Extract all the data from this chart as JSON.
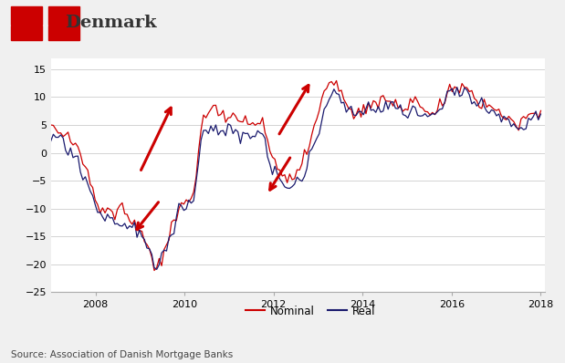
{
  "title": "Denmark",
  "source": "Source: Association of Danish Mortgage Banks",
  "ylim": [
    -25,
    17
  ],
  "yticks": [
    -25,
    -20,
    -15,
    -10,
    -5,
    0,
    5,
    10,
    15
  ],
  "xlim_start": 2007.0,
  "xlim_end": 2018.1,
  "xticks": [
    2008,
    2010,
    2012,
    2014,
    2016,
    2018
  ],
  "bg_color": "#f0f0f0",
  "bg_plot": "#ffffff",
  "nominal_color": "#cc0000",
  "real_color": "#1a1a6e",
  "arrow_color": "#cc0000",
  "nominal_key_t": [
    2007.0,
    2007.3,
    2007.6,
    2007.9,
    2008.1,
    2008.4,
    2008.6,
    2008.8,
    2009.0,
    2009.2,
    2009.35,
    2009.5,
    2009.7,
    2009.9,
    2010.0,
    2010.2,
    2010.4,
    2010.6,
    2010.8,
    2011.0,
    2011.2,
    2011.4,
    2011.6,
    2011.75,
    2011.9,
    2012.0,
    2012.15,
    2012.3,
    2012.5,
    2012.65,
    2012.8,
    2013.0,
    2013.2,
    2013.4,
    2013.6,
    2013.8,
    2014.0,
    2014.3,
    2014.6,
    2014.9,
    2015.2,
    2015.5,
    2015.8,
    2016.0,
    2016.2,
    2016.4,
    2016.6,
    2016.8,
    2017.0,
    2017.2,
    2017.5,
    2017.7,
    2018.0
  ],
  "nominal_key_v": [
    5.0,
    3.5,
    1.0,
    -5.0,
    -9.5,
    -10.5,
    -9.0,
    -12.0,
    -14.0,
    -17.0,
    -21.0,
    -19.0,
    -14.0,
    -9.5,
    -9.0,
    -8.5,
    6.5,
    8.0,
    7.5,
    6.5,
    6.0,
    5.5,
    5.0,
    6.5,
    0.0,
    -1.0,
    -4.0,
    -4.5,
    -3.0,
    -2.0,
    1.5,
    7.0,
    12.5,
    13.0,
    9.0,
    7.5,
    8.0,
    9.0,
    9.5,
    8.0,
    9.5,
    7.0,
    9.0,
    12.0,
    12.0,
    11.5,
    9.0,
    8.5,
    8.0,
    6.0,
    5.0,
    6.5,
    6.5
  ],
  "real_key_t": [
    2007.0,
    2007.3,
    2007.6,
    2007.9,
    2008.1,
    2008.4,
    2008.6,
    2008.8,
    2009.0,
    2009.2,
    2009.35,
    2009.5,
    2009.7,
    2009.9,
    2010.0,
    2010.2,
    2010.4,
    2010.6,
    2010.8,
    2011.0,
    2011.2,
    2011.4,
    2011.6,
    2011.75,
    2011.9,
    2012.0,
    2012.15,
    2012.3,
    2012.5,
    2012.65,
    2012.8,
    2013.0,
    2013.2,
    2013.4,
    2013.6,
    2013.8,
    2014.0,
    2014.3,
    2014.6,
    2014.9,
    2015.2,
    2015.5,
    2015.8,
    2016.0,
    2016.2,
    2016.4,
    2016.6,
    2016.8,
    2017.0,
    2017.2,
    2017.5,
    2017.7,
    2018.0
  ],
  "real_key_v": [
    3.0,
    1.5,
    -1.0,
    -7.0,
    -10.5,
    -12.0,
    -12.5,
    -13.5,
    -14.5,
    -16.5,
    -21.5,
    -18.5,
    -13.5,
    -9.5,
    -9.5,
    -9.0,
    3.5,
    4.5,
    4.0,
    4.0,
    3.5,
    3.5,
    3.0,
    3.5,
    -1.5,
    -3.0,
    -5.5,
    -6.5,
    -5.5,
    -5.0,
    -1.0,
    3.5,
    9.0,
    12.0,
    8.0,
    7.0,
    7.5,
    8.0,
    8.5,
    7.0,
    7.5,
    6.5,
    8.0,
    11.5,
    11.5,
    10.5,
    8.5,
    8.0,
    7.5,
    5.5,
    4.5,
    5.5,
    7.5
  ]
}
